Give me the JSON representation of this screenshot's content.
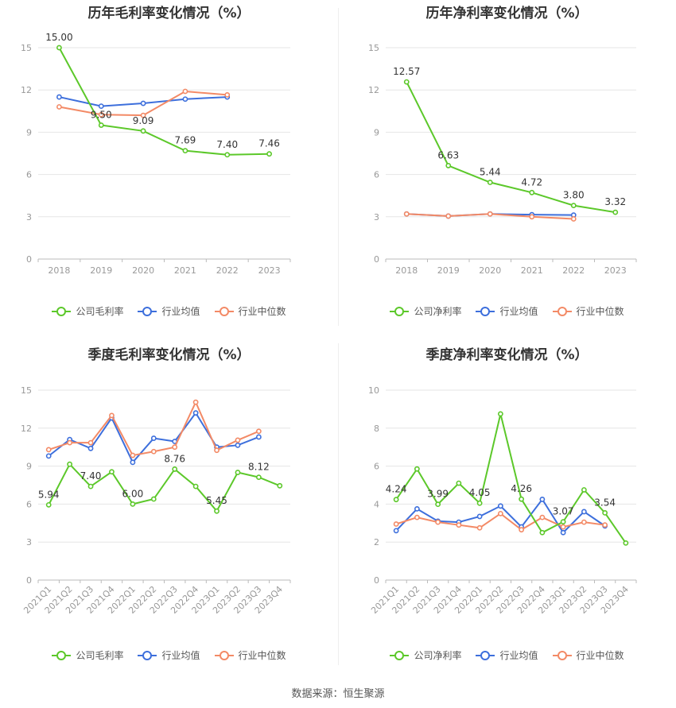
{
  "colors": {
    "company": "#5cc82a",
    "industry_avg": "#3d6fdc",
    "industry_median": "#f38a66",
    "grid": "#e6e6e6",
    "axis": "#999999"
  },
  "source_text": "数据来源：恒生聚源",
  "legend": {
    "gross": [
      "公司毛利率",
      "行业均值",
      "行业中位数"
    ],
    "net": [
      "公司净利率",
      "行业均值",
      "行业中位数"
    ]
  },
  "chart_data": [
    {
      "type": "line",
      "title": "历年毛利率变化情况（%）",
      "categories": [
        "2018",
        "2019",
        "2020",
        "2021",
        "2022",
        "2023"
      ],
      "ylim": [
        0,
        15
      ],
      "yticks": [
        0,
        3,
        6,
        9,
        12,
        15
      ],
      "series": [
        {
          "name": "公司毛利率",
          "values": [
            15.0,
            9.5,
            9.09,
            7.69,
            7.4,
            7.46
          ],
          "labels": [
            "15.00",
            "9.50",
            "9.09",
            "7.69",
            "7.40",
            "7.46"
          ]
        },
        {
          "name": "行业均值",
          "values": [
            11.5,
            10.85,
            11.05,
            11.35,
            11.5,
            null
          ]
        },
        {
          "name": "行业中位数",
          "values": [
            10.8,
            10.25,
            10.2,
            11.9,
            11.65,
            null
          ]
        }
      ],
      "grid": true,
      "legend_position": "bottom"
    },
    {
      "type": "line",
      "title": "历年净利率变化情况（%）",
      "categories": [
        "2018",
        "2019",
        "2020",
        "2021",
        "2022",
        "2023"
      ],
      "ylim": [
        0,
        15
      ],
      "yticks": [
        0,
        3,
        6,
        9,
        12,
        15
      ],
      "series": [
        {
          "name": "公司净利率",
          "values": [
            12.57,
            6.63,
            5.44,
            4.72,
            3.8,
            3.32
          ],
          "labels": [
            "12.57",
            "6.63",
            "5.44",
            "4.72",
            "3.80",
            "3.32"
          ]
        },
        {
          "name": "行业均值",
          "values": [
            3.2,
            3.05,
            3.2,
            3.15,
            3.12,
            null
          ]
        },
        {
          "name": "行业中位数",
          "values": [
            3.2,
            3.05,
            3.2,
            3.0,
            2.85,
            null
          ]
        }
      ],
      "grid": true,
      "legend_position": "bottom"
    },
    {
      "type": "line",
      "title": "季度毛利率变化情况（%）",
      "categories": [
        "2021Q1",
        "2021Q2",
        "2021Q3",
        "2021Q4",
        "2022Q1",
        "2022Q2",
        "2022Q3",
        "2022Q4",
        "2023Q1",
        "2023Q2",
        "2023Q3",
        "2023Q4"
      ],
      "ylim": [
        0,
        15
      ],
      "yticks": [
        0,
        3,
        6,
        9,
        12,
        15
      ],
      "series": [
        {
          "name": "公司毛利率",
          "values": [
            5.94,
            9.15,
            7.4,
            8.55,
            6.0,
            6.4,
            8.76,
            7.4,
            5.45,
            8.5,
            8.12,
            7.45
          ],
          "labels": [
            "5.94",
            "",
            "7.40",
            "",
            "6.00",
            "",
            "8.76",
            "",
            "5.45",
            "",
            "8.12",
            ""
          ]
        },
        {
          "name": "行业均值",
          "values": [
            9.8,
            11.1,
            10.4,
            12.8,
            9.3,
            11.2,
            10.95,
            13.2,
            10.5,
            10.65,
            11.3,
            null
          ]
        },
        {
          "name": "行业中位数",
          "values": [
            10.3,
            10.85,
            10.85,
            13.0,
            9.85,
            10.15,
            10.5,
            14.05,
            10.25,
            11.05,
            11.75,
            null
          ]
        }
      ],
      "grid": true,
      "legend_position": "bottom"
    },
    {
      "type": "line",
      "title": "季度净利率变化情况（%）",
      "categories": [
        "2021Q1",
        "2021Q2",
        "2021Q3",
        "2021Q4",
        "2022Q1",
        "2022Q2",
        "2022Q3",
        "2022Q4",
        "2023Q1",
        "2023Q2",
        "2023Q3",
        "2023Q4"
      ],
      "ylim": [
        0,
        10
      ],
      "yticks": [
        0,
        2,
        4,
        6,
        8,
        10
      ],
      "series": [
        {
          "name": "公司净利率",
          "values": [
            4.24,
            5.85,
            3.99,
            5.1,
            4.05,
            8.75,
            4.26,
            2.5,
            3.07,
            4.75,
            3.54,
            1.95
          ],
          "labels": [
            "4.24",
            "",
            "3.99",
            "",
            "4.05",
            "",
            "4.26",
            "",
            "3.07",
            "",
            "3.54",
            ""
          ]
        },
        {
          "name": "行业均值",
          "values": [
            2.6,
            3.75,
            3.1,
            3.05,
            3.35,
            3.9,
            2.8,
            4.25,
            2.5,
            3.6,
            2.85,
            null
          ]
        },
        {
          "name": "行业中位数",
          "values": [
            2.95,
            3.3,
            3.05,
            2.9,
            2.75,
            3.5,
            2.65,
            3.3,
            2.8,
            3.05,
            2.9,
            null
          ]
        }
      ],
      "grid": true,
      "legend_position": "bottom"
    }
  ]
}
